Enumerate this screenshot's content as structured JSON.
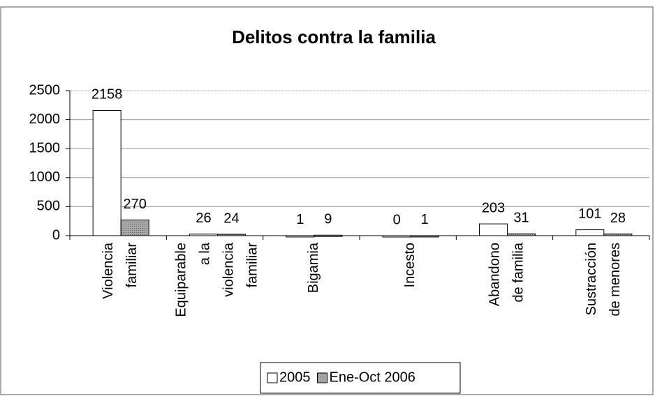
{
  "chart_data": {
    "type": "bar",
    "title": "Delitos contra la familia",
    "categories": [
      "Violencia familiar",
      "Equiparable a la violencia familiar",
      "Bigamia",
      "Incesto",
      "Abandono de familia",
      "Sustracción de menores"
    ],
    "series": [
      {
        "name": "2005",
        "color": "#ffffff",
        "values": [
          2158,
          26,
          1,
          0,
          203,
          101
        ]
      },
      {
        "name": "Ene-Oct 2006",
        "color": "#a8a8a8",
        "values": [
          270,
          24,
          9,
          1,
          31,
          28
        ]
      }
    ],
    "ylim": [
      0,
      2500
    ],
    "yticks": [
      0,
      500,
      1000,
      1500,
      2000,
      2500
    ],
    "grid": true,
    "legend": "bottom"
  }
}
